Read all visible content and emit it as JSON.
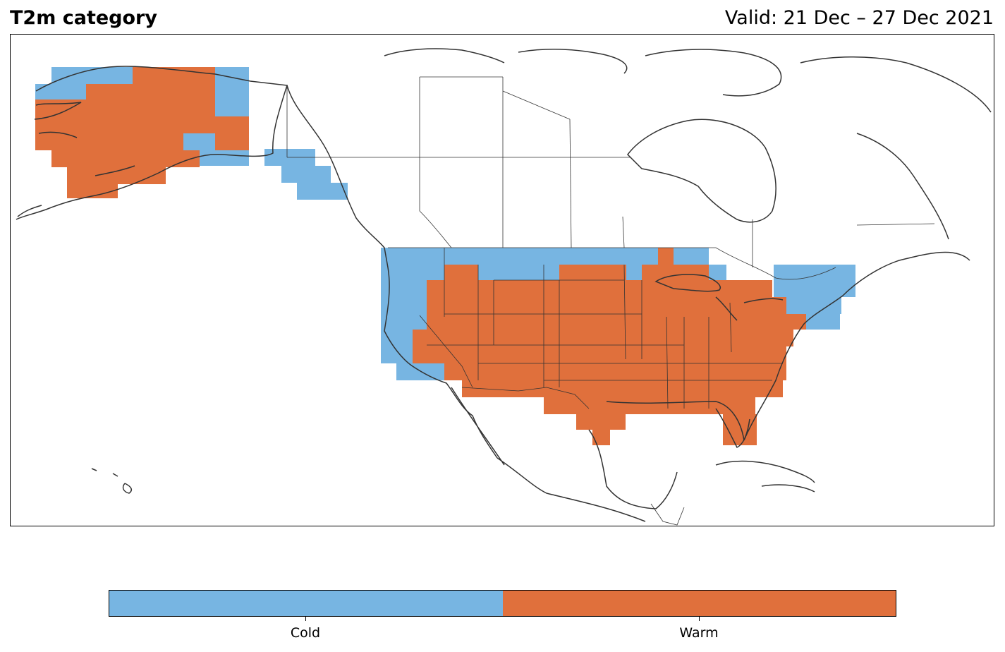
{
  "title": "T2m category",
  "valid": "Valid: 21 Dec – 27 Dec 2021",
  "colors": {
    "cold": "#77b5e2",
    "warm": "#e0703c",
    "coast": "#333333",
    "border": "#333333"
  },
  "legend": {
    "categories": [
      "Cold",
      "Warm"
    ]
  }
}
